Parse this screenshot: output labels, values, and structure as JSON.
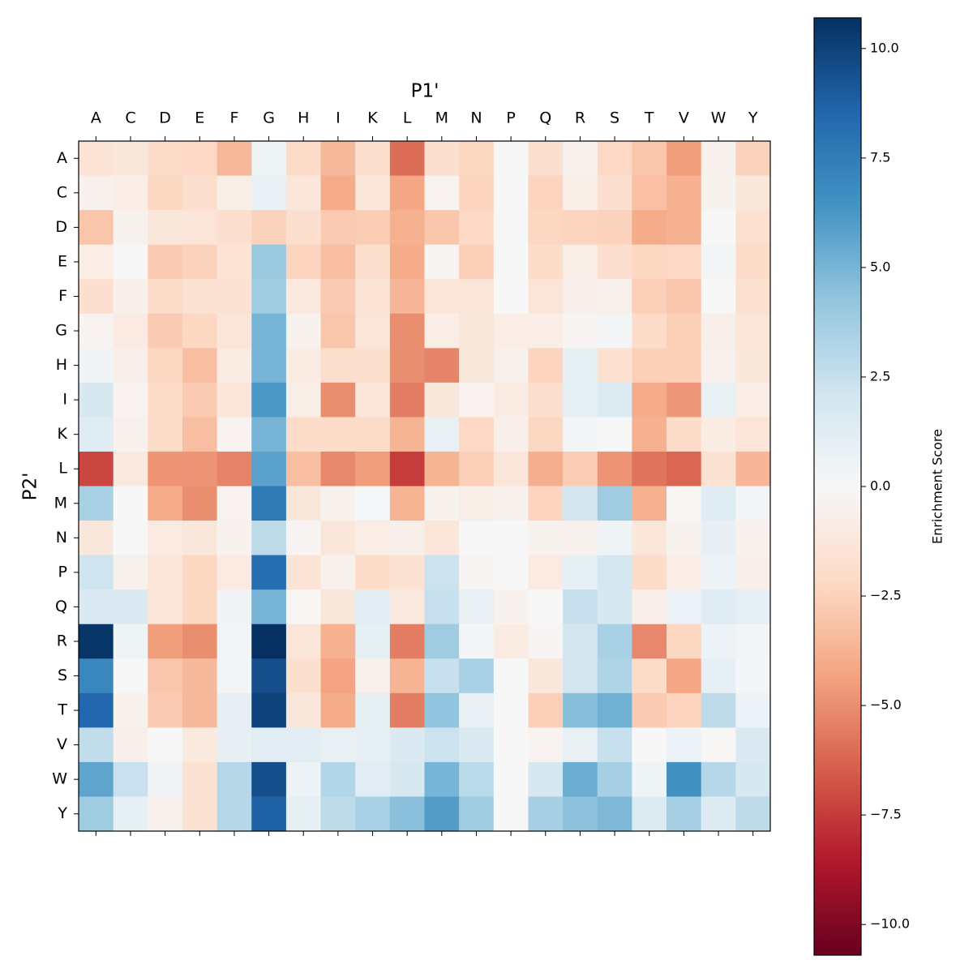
{
  "chart_data": {
    "type": "heatmap",
    "x_label": "P1'",
    "y_label": "P2'",
    "x_categories": [
      "A",
      "C",
      "D",
      "E",
      "F",
      "G",
      "H",
      "I",
      "K",
      "L",
      "M",
      "N",
      "P",
      "Q",
      "R",
      "S",
      "T",
      "V",
      "W",
      "Y"
    ],
    "y_categories": [
      "A",
      "C",
      "D",
      "E",
      "F",
      "G",
      "H",
      "I",
      "K",
      "L",
      "M",
      "N",
      "P",
      "Q",
      "R",
      "S",
      "T",
      "V",
      "W",
      "Y"
    ],
    "values": [
      [
        -1.5,
        -1.2,
        -2,
        -2.2,
        -3.5,
        0.5,
        -2,
        -3.5,
        -1.8,
        -6,
        -1.8,
        -2.3,
        0,
        -1.8,
        -0.5,
        -2.2,
        -3,
        -4.5,
        -0.5,
        -2.5
      ],
      [
        -0.5,
        -0.8,
        -2.3,
        -1.8,
        -0.7,
        0.8,
        -1.3,
        -4,
        -1.3,
        -4.2,
        -0.3,
        -2.4,
        0,
        -2.4,
        -0.7,
        -1.8,
        -3.2,
        -3.8,
        -0.4,
        -1.2
      ],
      [
        -3,
        -0.4,
        -1.2,
        -1.4,
        -1.8,
        -2.5,
        -1.8,
        -2.8,
        -2.7,
        -3.8,
        -3,
        -2.2,
        0,
        -2.3,
        -2.4,
        -2.5,
        -4,
        -3.8,
        0,
        -1.7
      ],
      [
        -0.8,
        0,
        -2.8,
        -2.5,
        -1.5,
        4,
        -2.4,
        -3.3,
        -1.8,
        -4,
        -0.2,
        -2.6,
        0,
        -2.1,
        -0.7,
        -1.8,
        -2.3,
        -2.2,
        0.3,
        -2
      ],
      [
        -1.8,
        -0.6,
        -2,
        -1.6,
        -1.6,
        3.8,
        -1.1,
        -2.8,
        -1.5,
        -3.6,
        -1.4,
        -1.4,
        0,
        -1.4,
        -0.6,
        -0.5,
        -2.6,
        -3,
        0,
        -1.7
      ],
      [
        -0.3,
        -1,
        -2.8,
        -2.3,
        -1.4,
        5,
        -0.4,
        -3,
        -1.4,
        -5,
        -0.8,
        -1.2,
        -0.8,
        -0.8,
        -0.2,
        0.3,
        -2,
        -2.6,
        -0.6,
        -1.4
      ],
      [
        0.4,
        -0.6,
        -2.3,
        -3.3,
        -0.9,
        5,
        -0.9,
        -1.9,
        -1.8,
        -5,
        -5.3,
        -1.2,
        -0.5,
        -2.4,
        1,
        -1.7,
        -2.6,
        -2.6,
        -0.5,
        -1.2
      ],
      [
        1.8,
        -0.3,
        -2,
        -2.8,
        -1.4,
        6.2,
        -0.7,
        -5,
        -1.4,
        -5.5,
        -1.2,
        -0.3,
        -0.9,
        -1.8,
        1,
        1.5,
        -4,
        -4.7,
        0.8,
        -0.8
      ],
      [
        1.3,
        -0.5,
        -2,
        -3.3,
        -0.3,
        5,
        -2,
        -2,
        -2,
        -3.7,
        0.8,
        -2.2,
        -0.6,
        -2.3,
        0.3,
        0,
        -3.8,
        -2,
        -0.9,
        -1.4
      ],
      [
        -7.2,
        -1.1,
        -4.8,
        -4.8,
        -5.3,
        5.8,
        -3.3,
        -5.2,
        -4.5,
        -7.5,
        -3.7,
        -2.6,
        -1.3,
        -3.9,
        -2.7,
        -4.8,
        -5.8,
        -6.2,
        -1.6,
        -3.6
      ],
      [
        3.5,
        0,
        -4,
        -5,
        -0.3,
        7.6,
        -1.2,
        -0.4,
        0.1,
        -3.7,
        -0.4,
        -0.7,
        -0.5,
        -2.4,
        2,
        3.8,
        -3.8,
        -0.1,
        1.3,
        0.3
      ],
      [
        -1.2,
        0,
        -1,
        -1.2,
        -0.4,
        2.8,
        -0.2,
        -1.2,
        -0.8,
        -0.6,
        -1.3,
        0,
        0,
        -0.4,
        -0.5,
        0.5,
        -1.3,
        -0.4,
        0.9,
        -0.5
      ],
      [
        2.2,
        -0.5,
        -1.4,
        -2.3,
        -1,
        8.2,
        -1.5,
        -0.5,
        -2,
        -1.6,
        2.3,
        -0.2,
        0,
        -1,
        1,
        1.9,
        -2,
        -0.8,
        0.6,
        -0.6
      ],
      [
        1.6,
        1.6,
        -1.3,
        -2.3,
        0.4,
        5,
        -0.1,
        -1.2,
        1.2,
        -1.1,
        2.5,
        0.8,
        -0.4,
        0,
        2.5,
        1.8,
        -0.6,
        0.6,
        1.3,
        1
      ],
      [
        10.5,
        0.5,
        -4.5,
        -5,
        0.3,
        10.7,
        -1.4,
        -3.8,
        1,
        -5.5,
        3.8,
        0.2,
        -0.9,
        -0.2,
        2,
        3.5,
        -5.2,
        -2.3,
        0.6,
        0.3
      ],
      [
        7,
        0,
        -3,
        -3.5,
        0.3,
        9.5,
        -1.8,
        -4.3,
        -0.5,
        -3.7,
        2.5,
        3.5,
        0,
        -1.2,
        2,
        3.3,
        -2,
        -4.2,
        1,
        0.2
      ],
      [
        8.5,
        -0.4,
        -2.8,
        -3.5,
        0.9,
        10,
        -1.2,
        -4,
        1,
        -5.5,
        4.3,
        0.8,
        0,
        -2.6,
        4.6,
        5.2,
        -2.8,
        -2.4,
        2.8,
        0.6
      ],
      [
        2.7,
        -0.6,
        0,
        -1.1,
        0.9,
        1.2,
        1.2,
        0.8,
        1,
        1.6,
        2.3,
        1.6,
        0,
        -0.3,
        0.8,
        2.5,
        0,
        0.6,
        -0.1,
        1.6
      ],
      [
        5.7,
        2.4,
        0.4,
        -1.6,
        3.1,
        9.5,
        0.6,
        3.2,
        1.2,
        1.8,
        5,
        2.9,
        0,
        1.8,
        5.3,
        3.6,
        0.5,
        6.5,
        3.1,
        1.8
      ],
      [
        3.8,
        1,
        -0.5,
        -1.6,
        3.1,
        8.8,
        1,
        2.8,
        3.5,
        4.5,
        6,
        3.8,
        0,
        3.6,
        4.4,
        4.8,
        1.5,
        3.6,
        1.4,
        2.8
      ]
    ],
    "colorscale": [
      "#67001f",
      "#b2182b",
      "#d6604d",
      "#f4a582",
      "#fddbc7",
      "#f7f7f7",
      "#d1e5f0",
      "#92c5de",
      "#4393c3",
      "#2166ac",
      "#053061"
    ],
    "colorbar": {
      "label": "Enrichment Score",
      "lim": [
        -10.7,
        10.7
      ],
      "ticks": [
        {
          "value": -10,
          "label": "−10.0"
        },
        {
          "value": -7.5,
          "label": "−7.5"
        },
        {
          "value": -5,
          "label": "−5.0"
        },
        {
          "value": -2.5,
          "label": "−2.5"
        },
        {
          "value": 0,
          "label": "0.0"
        },
        {
          "value": 2.5,
          "label": "2.5"
        },
        {
          "value": 5,
          "label": "5.0"
        },
        {
          "value": 7.5,
          "label": "7.5"
        },
        {
          "value": 10,
          "label": "10.0"
        }
      ]
    }
  }
}
